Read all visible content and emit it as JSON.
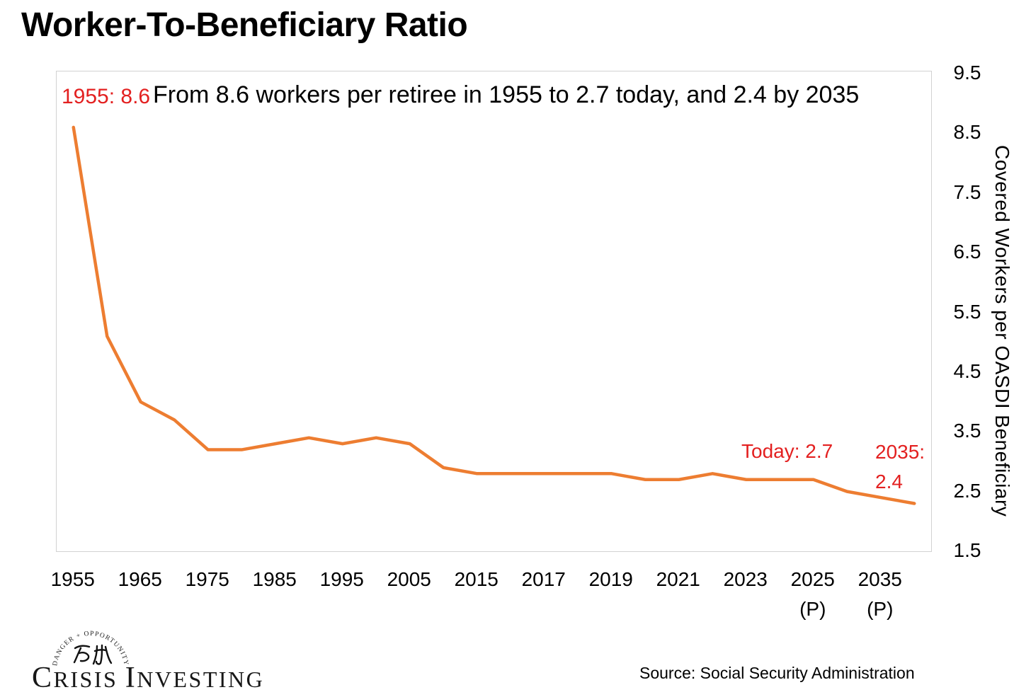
{
  "page": {
    "title": "Worker-To-Beneficiary Ratio",
    "source": "Source: Social Security Administration"
  },
  "logo": {
    "arc_text": "DANGER + OPPORTUNITY",
    "cjk_text": "危机",
    "wordmark": "Crisis Investing",
    "wordmark_parts": {
      "lead1": "C",
      "rest1": "RISIS",
      "lead2": "I",
      "rest2": "NVESTING"
    }
  },
  "chart_data": {
    "type": "line",
    "title": "Worker-To-Beneficiary Ratio",
    "subtitle": "From 8.6 workers per retiree in 1955 to 2.7 today, and 2.4 by 2035",
    "xlabel": "",
    "ylabel": "Covered Workers per OASDI Beneficiary",
    "ylim": [
      1.5,
      9.5
    ],
    "y_tick_labels": [
      "9.5",
      "8.5",
      "7.5",
      "6.5",
      "5.5",
      "4.5",
      "3.5",
      "2.5",
      "1.5"
    ],
    "x_tick_labels": [
      {
        "year": "1955",
        "sub": ""
      },
      {
        "year": "1965",
        "sub": ""
      },
      {
        "year": "1975",
        "sub": ""
      },
      {
        "year": "1985",
        "sub": ""
      },
      {
        "year": "1995",
        "sub": ""
      },
      {
        "year": "2005",
        "sub": ""
      },
      {
        "year": "2015",
        "sub": ""
      },
      {
        "year": "2017",
        "sub": ""
      },
      {
        "year": "2019",
        "sub": ""
      },
      {
        "year": "2021",
        "sub": ""
      },
      {
        "year": "2023",
        "sub": ""
      },
      {
        "year": "2025",
        "sub": "(P)"
      },
      {
        "year": "2035",
        "sub": "(P)"
      }
    ],
    "grid": false,
    "legend": "none",
    "line_color": "#ED7D31",
    "annotation_color": "#E32020",
    "series": [
      {
        "name": "Covered workers per OASDI beneficiary",
        "x": [
          1955,
          1960,
          1965,
          1970,
          1975,
          1980,
          1985,
          1990,
          1995,
          2000,
          2005,
          2010,
          2015,
          2016,
          2017,
          2018,
          2019,
          2020,
          2021,
          2022,
          2023,
          2024,
          2025,
          2030,
          2035,
          2040
        ],
        "values": [
          8.6,
          5.1,
          4.0,
          3.7,
          3.2,
          3.2,
          3.3,
          3.4,
          3.3,
          3.4,
          3.3,
          2.9,
          2.8,
          2.8,
          2.8,
          2.8,
          2.8,
          2.7,
          2.7,
          2.8,
          2.7,
          2.7,
          2.7,
          2.5,
          2.4,
          2.3
        ]
      }
    ],
    "annotations": {
      "start": "1955: 8.6",
      "today": "Today: 2.7",
      "future_line1": "2035:",
      "future_line2": "2.4"
    }
  }
}
